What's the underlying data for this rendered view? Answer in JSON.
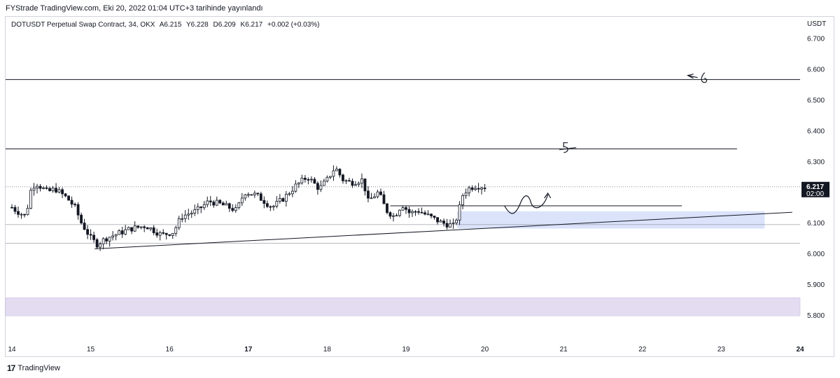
{
  "header": {
    "published_line": "FYStrade TradingView.com, Eki 20, 2022 01:04 UTC+3 tarihinde yayınlandı"
  },
  "legend": {
    "symbol": "DOTUSDT Perpetual Swap Contract, 34, OKX",
    "open": "A6.215",
    "high": "Y6.228",
    "low": "D6.209",
    "close": "K6.217",
    "change": "+0.002 (+0.03%)"
  },
  "price_badge": {
    "price": "6.217",
    "countdown": "02:00"
  },
  "footer": {
    "logo_glyph": "17",
    "brand": "TradingView"
  },
  "colors": {
    "candle": "#131722",
    "zone_blue": "#dbe3fb",
    "zone_purple": "#e4dcf1",
    "line": "#131722",
    "grid": "#e0e3eb",
    "badge_bg": "#131722"
  },
  "chart_data": {
    "type": "candlestick",
    "y_axis": {
      "unit": "USDT",
      "ticks": [
        "6.700",
        "6.600",
        "6.500",
        "6.400",
        "6.300",
        "6.200",
        "6.100",
        "6.000",
        "5.900",
        "5.800"
      ],
      "range": [
        5.72,
        6.77
      ]
    },
    "x_axis": {
      "ticks": [
        {
          "label": "14",
          "day": 14,
          "bold": false
        },
        {
          "label": "15",
          "day": 15,
          "bold": false
        },
        {
          "label": "16",
          "day": 16,
          "bold": false
        },
        {
          "label": "17",
          "day": 17,
          "bold": true
        },
        {
          "label": "18",
          "day": 18,
          "bold": false
        },
        {
          "label": "19",
          "day": 19,
          "bold": false
        },
        {
          "label": "20",
          "day": 20,
          "bold": false
        },
        {
          "label": "21",
          "day": 21,
          "bold": false
        },
        {
          "label": "22",
          "day": 22,
          "bold": false
        },
        {
          "label": "23",
          "day": 23,
          "bold": false
        },
        {
          "label": "24",
          "day": 24,
          "bold": true
        }
      ],
      "range": [
        13.92,
        24.0
      ]
    },
    "current_price": 6.217,
    "candles_start_day": 14.0,
    "candles_end_day": 20.0,
    "candle_anchors": [
      [
        14.0,
        6.15
      ],
      [
        14.05,
        6.14
      ],
      [
        14.18,
        6.12
      ],
      [
        14.23,
        6.2
      ],
      [
        14.3,
        6.23
      ],
      [
        14.45,
        6.2
      ],
      [
        14.55,
        6.21
      ],
      [
        14.7,
        6.18
      ],
      [
        14.8,
        6.15
      ],
      [
        14.88,
        6.1
      ],
      [
        15.0,
        6.05
      ],
      [
        15.08,
        6.03
      ],
      [
        15.2,
        6.05
      ],
      [
        15.5,
        6.08
      ],
      [
        15.7,
        6.09
      ],
      [
        15.9,
        6.06
      ],
      [
        16.05,
        6.07
      ],
      [
        16.15,
        6.12
      ],
      [
        16.35,
        6.14
      ],
      [
        16.5,
        6.17
      ],
      [
        16.65,
        6.16
      ],
      [
        16.85,
        6.14
      ],
      [
        16.95,
        6.2
      ],
      [
        17.1,
        6.19
      ],
      [
        17.3,
        6.15
      ],
      [
        17.45,
        6.18
      ],
      [
        17.6,
        6.22
      ],
      [
        17.75,
        6.25
      ],
      [
        17.9,
        6.21
      ],
      [
        18.0,
        6.24
      ],
      [
        18.1,
        6.28
      ],
      [
        18.2,
        6.24
      ],
      [
        18.3,
        6.23
      ],
      [
        18.45,
        6.24
      ],
      [
        18.52,
        6.17
      ],
      [
        18.65,
        6.2
      ],
      [
        18.75,
        6.14
      ],
      [
        18.85,
        6.12
      ],
      [
        18.95,
        6.16
      ],
      [
        19.05,
        6.13
      ],
      [
        19.15,
        6.14
      ],
      [
        19.3,
        6.12
      ],
      [
        19.45,
        6.1
      ],
      [
        19.6,
        6.09
      ],
      [
        19.65,
        6.12
      ],
      [
        19.72,
        6.19
      ],
      [
        19.78,
        6.21
      ],
      [
        19.88,
        6.22
      ],
      [
        20.0,
        6.217
      ]
    ],
    "lines": [
      {
        "name": "resistance-high",
        "kind": "horizontal",
        "price": 6.566,
        "from_day": 13.92,
        "to_day": 24.0
      },
      {
        "name": "resistance-mid",
        "kind": "horizontal",
        "price": 6.34,
        "from_day": 13.92,
        "to_day": 23.2
      },
      {
        "name": "support-short",
        "kind": "horizontal",
        "price": 6.155,
        "from_day": 18.8,
        "to_day": 22.5
      },
      {
        "name": "trend-line",
        "kind": "segment",
        "from": [
          15.05,
          6.015
        ],
        "to": [
          23.9,
          6.134
        ]
      }
    ],
    "zones": [
      {
        "name": "demand-zone-blue",
        "from_day": 19.65,
        "to_day": 23.55,
        "price_low": 6.081,
        "price_high": 6.137,
        "color": "#dbe3fb"
      },
      {
        "name": "zone-purple",
        "from_day": 13.92,
        "to_day": 24.0,
        "price_low": 5.797,
        "price_high": 5.856,
        "color": "#e4dcf1"
      }
    ],
    "dotted_levels": [
      6.217,
      6.094,
      6.033
    ],
    "annotations": [
      {
        "name": "handwritten-6",
        "day": 22.7,
        "price": 6.57
      },
      {
        "name": "handwritten-5",
        "day": 21.0,
        "price": 6.34
      },
      {
        "name": "projected-path",
        "from_day": 20.25,
        "to_day": 20.8
      }
    ]
  }
}
